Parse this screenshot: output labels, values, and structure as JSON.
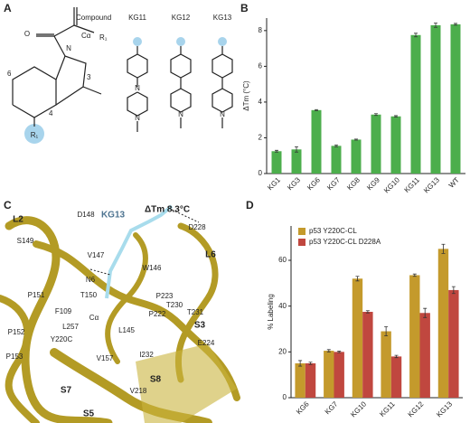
{
  "panel_labels": [
    "A",
    "B",
    "C",
    "D"
  ],
  "panel_a": {
    "header": "Compound",
    "r_group": "R₁",
    "compounds": [
      "KG11",
      "KG12",
      "KG13"
    ],
    "atoms": {
      "carbonyl_o": "O",
      "c_alpha": "Cα",
      "ring_n": "N",
      "pos6": "6",
      "pos3": "3",
      "pos4": "4",
      "r1": "R₁",
      "pip_n_top": "N",
      "pip_n_bottom": "N",
      "kg12_n": "N",
      "kg13_n": "N"
    }
  },
  "panel_c": {
    "labels": [
      "L2",
      "D148",
      "S149",
      "KG13",
      "ΔTm 8.3°C",
      "D228",
      "L6",
      "V147",
      "W146",
      "N6",
      "T150",
      "P151",
      "P223",
      "F109",
      "Cα",
      "T230",
      "P222",
      "L257",
      "L145",
      "S3",
      "T231",
      "P152",
      "Y220C",
      "E224",
      "P153",
      "V157",
      "I232",
      "S7",
      "V218",
      "S8",
      "S5"
    ]
  },
  "chart_data": [
    {
      "type": "bar",
      "ylabel": "ΔTm (°C)",
      "categories": [
        "KG1",
        "KG3",
        "KG6",
        "KG7",
        "KG8",
        "KG9",
        "KG10",
        "KG11",
        "KG13",
        "WT"
      ],
      "values": [
        1.25,
        1.35,
        3.55,
        1.55,
        1.9,
        3.3,
        3.2,
        7.75,
        8.3,
        8.35
      ],
      "errors": [
        0.05,
        0.15,
        0.03,
        0.05,
        0.03,
        0.05,
        0.04,
        0.1,
        0.12,
        0.05
      ],
      "color": "#4cae4c",
      "ylim": [
        0,
        8.7
      ],
      "yticks": [
        0,
        2,
        4,
        6,
        8
      ]
    },
    {
      "type": "grouped_bar",
      "ylabel": "% Labeling",
      "categories": [
        "KG6",
        "KG7",
        "KG10",
        "KG11",
        "KG12",
        "KG13"
      ],
      "series": [
        {
          "name": "p53 Y220C-CL",
          "color": "#c49a2c",
          "values": [
            15,
            20.5,
            52,
            29,
            53.5,
            65
          ],
          "errors": [
            1.2,
            0.5,
            1,
            2,
            0.5,
            2
          ]
        },
        {
          "name": "p53 Y220C-CL D228A",
          "color": "#c0473f",
          "values": [
            15,
            20,
            37.5,
            18,
            37,
            47
          ],
          "errors": [
            0.5,
            0.3,
            0.5,
            0.5,
            2,
            1.5
          ]
        }
      ],
      "ylim": [
        0,
        75
      ],
      "yticks": [
        0,
        20,
        40,
        60
      ],
      "legend": "upper left"
    }
  ]
}
